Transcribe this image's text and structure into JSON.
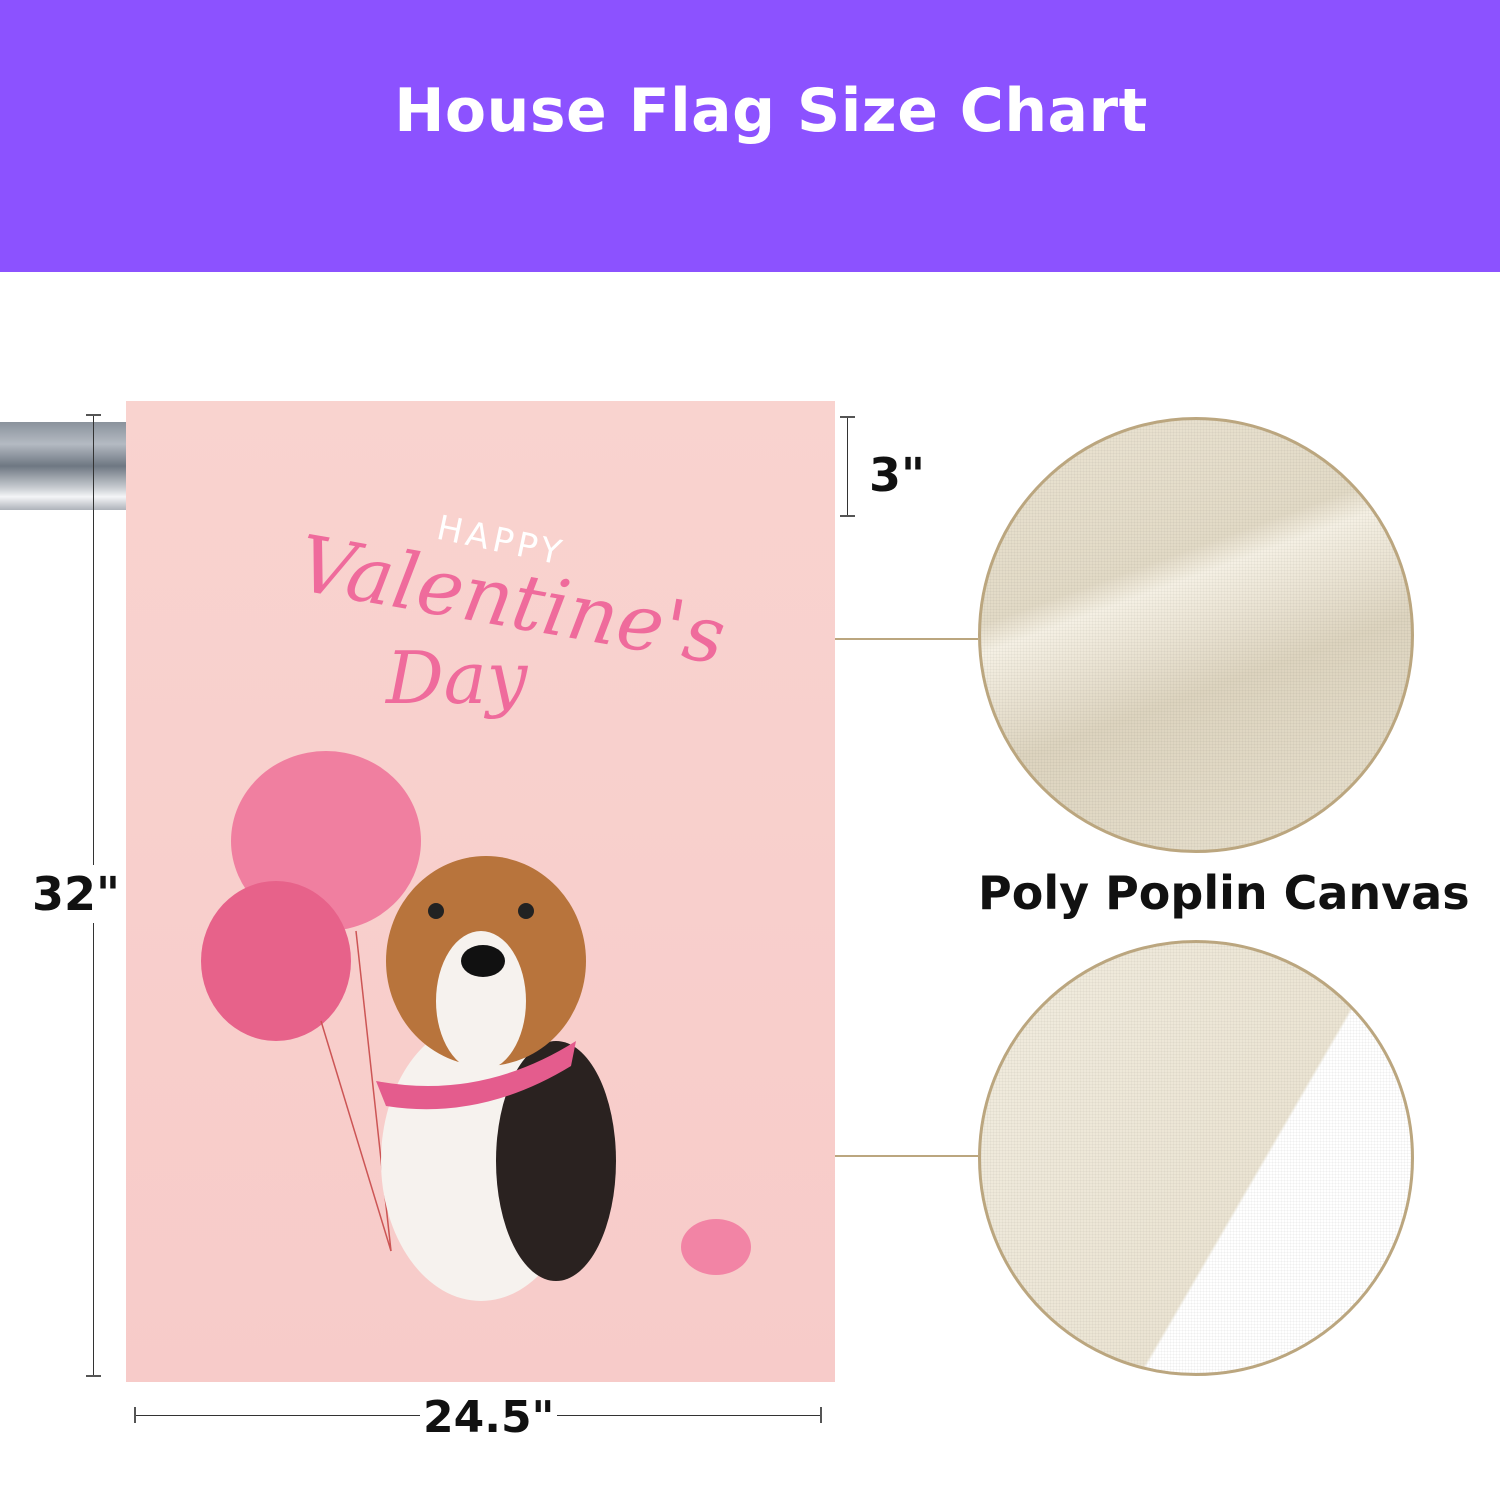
{
  "header": {
    "title": "House Flag Size Chart",
    "background": "#8c52ff"
  },
  "flag": {
    "artwork_text": {
      "line1": "HAPPY",
      "line2": "Valentine's",
      "line3": "Day"
    },
    "background": "#f9d3cf"
  },
  "dimensions": {
    "height": "32\"",
    "width": "24.5\"",
    "sleeve": "3\""
  },
  "material": {
    "label": "Poly Poplin Canvas"
  }
}
